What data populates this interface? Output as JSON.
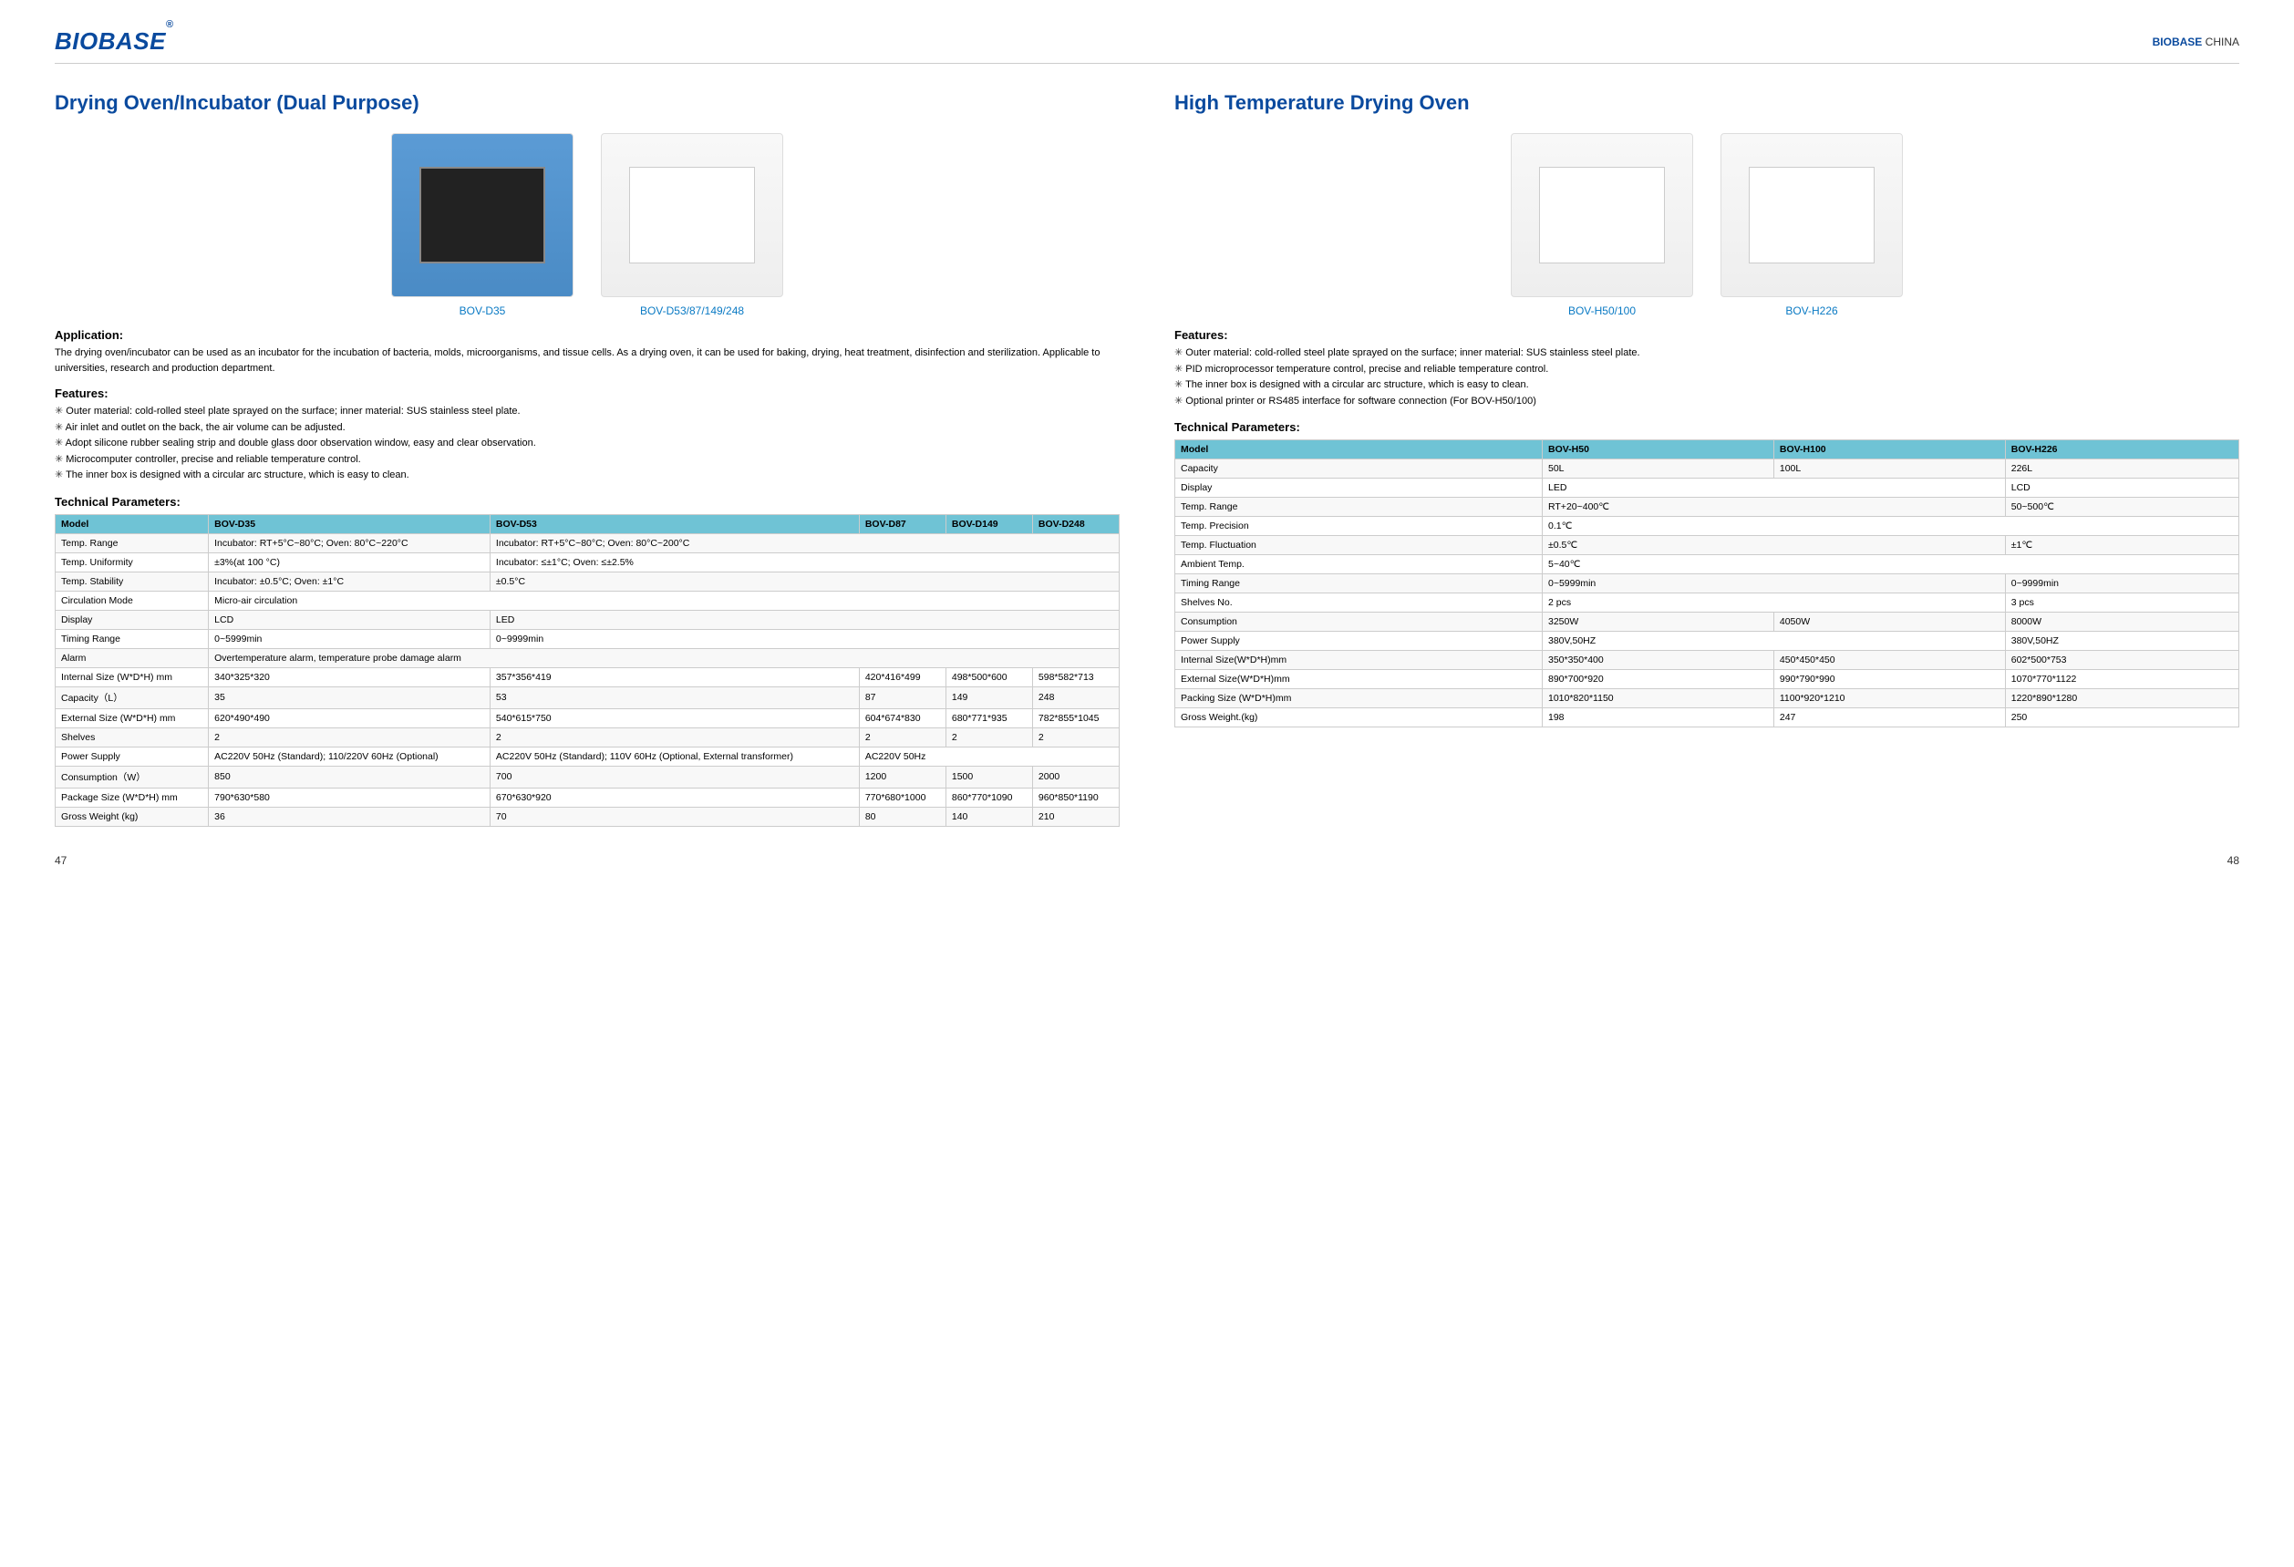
{
  "header": {
    "logo": "BIOBASE",
    "brand": "BIOBASE",
    "country": "CHINA"
  },
  "left": {
    "title": "Drying Oven/Incubator (Dual Purpose)",
    "images": [
      {
        "caption": "BOV-D35",
        "variant": "blue-box"
      },
      {
        "caption": "BOV-D53/87/149/248",
        "variant": "white-box"
      }
    ],
    "applicationLabel": "Application:",
    "applicationText": "The drying oven/incubator can be used as an incubator for the incubation of bacteria, molds, microorganisms, and tissue cells. As a drying oven, it can be used for baking, drying, heat treatment, disinfection and sterilization. Applicable to universities, research and production department.",
    "featuresLabel": "Features:",
    "features": [
      "Outer material: cold-rolled steel plate sprayed on the surface; inner material: SUS stainless steel plate.",
      "Air inlet and outlet on the back, the air volume can be adjusted.",
      "Adopt silicone rubber sealing strip and double glass door observation window, easy and clear observation.",
      "Microcomputer controller, precise and reliable temperature control.",
      "The inner box is designed with a circular arc structure, which is easy to clean."
    ],
    "paramsLabel": "Technical Parameters:",
    "table": {
      "headers": [
        "Model",
        "BOV-D35",
        "BOV-D53",
        "BOV-D87",
        "BOV-D149",
        "BOV-D248"
      ],
      "rows": [
        [
          "Temp. Range",
          "Incubator: RT+5°C~80°C; Oven: 80°C~220°C",
          {
            "colspan": 4,
            "text": "Incubator: RT+5°C~80°C; Oven: 80°C~200°C"
          }
        ],
        [
          "Temp. Uniformity",
          "±3%(at 100 °C)",
          {
            "colspan": 4,
            "text": "Incubator: ≤±1°C; Oven: ≤±2.5%"
          }
        ],
        [
          "Temp. Stability",
          "Incubator: ±0.5°C; Oven: ±1°C",
          {
            "colspan": 4,
            "text": "±0.5°C"
          }
        ],
        [
          "Circulation Mode",
          {
            "colspan": 5,
            "text": "Micro-air circulation"
          }
        ],
        [
          "Display",
          "LCD",
          {
            "colspan": 4,
            "text": "LED"
          }
        ],
        [
          "Timing Range",
          "0~5999min",
          {
            "colspan": 4,
            "text": "0~9999min"
          }
        ],
        [
          "Alarm",
          {
            "colspan": 5,
            "text": "Overtemperature alarm, temperature probe damage alarm"
          }
        ],
        [
          "Internal Size (W*D*H) mm",
          "340*325*320",
          "357*356*419",
          "420*416*499",
          "498*500*600",
          "598*582*713"
        ],
        [
          "Capacity（L）",
          "35",
          "53",
          "87",
          "149",
          "248"
        ],
        [
          "External Size (W*D*H) mm",
          "620*490*490",
          "540*615*750",
          "604*674*830",
          "680*771*935",
          "782*855*1045"
        ],
        [
          "Shelves",
          "2",
          "2",
          "2",
          "2",
          "2"
        ],
        [
          "Power Supply",
          "AC220V 50Hz (Standard); 110/220V 60Hz (Optional)",
          "AC220V 50Hz (Standard); 110V 60Hz (Optional, External transformer)",
          {
            "colspan": 3,
            "text": "AC220V 50Hz"
          }
        ],
        [
          "Consumption（W）",
          "850",
          "700",
          "1200",
          "1500",
          "2000"
        ],
        [
          "Package Size (W*D*H) mm",
          "790*630*580",
          "670*630*920",
          "770*680*1000",
          "860*770*1090",
          "960*850*1190"
        ],
        [
          "Gross Weight (kg)",
          "36",
          "70",
          "80",
          "140",
          "210"
        ]
      ]
    }
  },
  "right": {
    "title": "High Temperature Drying Oven",
    "images": [
      {
        "caption": "BOV-H50/100",
        "variant": "white-box"
      },
      {
        "caption": "BOV-H226",
        "variant": "white-box"
      }
    ],
    "featuresLabel": "Features:",
    "features": [
      "Outer material: cold-rolled steel plate sprayed on the surface; inner material: SUS stainless steel plate.",
      "PID microprocessor temperature control, precise and reliable temperature control.",
      "The inner box is designed with a circular arc structure, which is easy to clean.",
      "Optional printer or RS485 interface for software connection (For BOV-H50/100)"
    ],
    "paramsLabel": "Technical Parameters:",
    "table": {
      "headers": [
        "Model",
        "BOV-H50",
        "BOV-H100",
        "BOV-H226"
      ],
      "rows": [
        [
          "Capacity",
          "50L",
          "100L",
          "226L"
        ],
        [
          "Display",
          {
            "colspan": 2,
            "text": "LED"
          },
          "LCD"
        ],
        [
          "Temp. Range",
          {
            "colspan": 2,
            "text": "RT+20~400℃"
          },
          "50~500℃"
        ],
        [
          "Temp. Precision",
          {
            "colspan": 3,
            "text": "0.1℃"
          }
        ],
        [
          "Temp. Fluctuation",
          {
            "colspan": 2,
            "text": "±0.5℃"
          },
          "±1℃"
        ],
        [
          "Ambient Temp.",
          {
            "colspan": 3,
            "text": "5~40℃"
          }
        ],
        [
          "Timing Range",
          {
            "colspan": 2,
            "text": "0~5999min"
          },
          "0~9999min"
        ],
        [
          "Shelves No.",
          {
            "colspan": 2,
            "text": "2 pcs"
          },
          "3 pcs"
        ],
        [
          "Consumption",
          "3250W",
          "4050W",
          "8000W"
        ],
        [
          "Power Supply",
          {
            "colspan": 2,
            "text": "380V,50HZ"
          },
          "380V,50HZ"
        ],
        [
          "Internal Size(W*D*H)mm",
          "350*350*400",
          "450*450*450",
          "602*500*753"
        ],
        [
          "External Size(W*D*H)mm",
          "890*700*920",
          "990*790*990",
          "1070*770*1122"
        ],
        [
          "Packing Size (W*D*H)mm",
          "1010*820*1150",
          "1100*920*1210",
          "1220*890*1280"
        ],
        [
          "Gross Weight.(kg)",
          "198",
          "247",
          "250"
        ]
      ]
    }
  },
  "footer": {
    "leftPage": "47",
    "rightPage": "48"
  }
}
